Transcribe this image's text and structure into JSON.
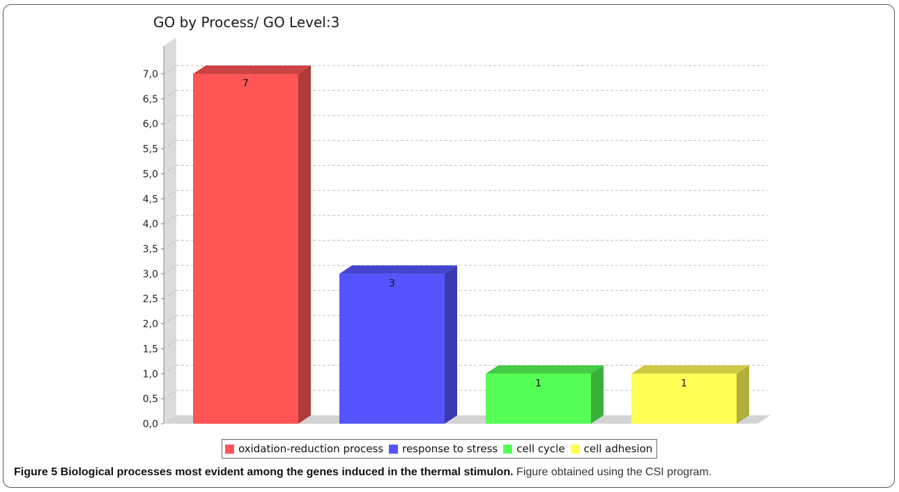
{
  "chart_data": {
    "type": "bar",
    "title": "GO by Process/ GO Level:3",
    "categories": [
      "oxidation-reduction process",
      "response to stress",
      "cell cycle",
      "cell adhesion"
    ],
    "values": [
      7,
      3,
      1,
      1
    ],
    "data_labels": [
      "7",
      "3",
      "1",
      "1"
    ],
    "colors": [
      "#ff5555",
      "#5555ff",
      "#55ff55",
      "#ffff55"
    ],
    "side_colors": [
      "#b03a3a",
      "#3a3ab0",
      "#3ab03a",
      "#b0b03a"
    ],
    "top_colors": [
      "#cc4444",
      "#4444cc",
      "#44cc44",
      "#cccc44"
    ],
    "ylim": [
      0,
      7
    ],
    "yticks": [
      "0,0",
      "0,5",
      "1,0",
      "1,5",
      "2,0",
      "2,5",
      "3,0",
      "3,5",
      "4,0",
      "4,5",
      "5,0",
      "5,5",
      "6,0",
      "6,5",
      "7,0"
    ],
    "ytick_values": [
      0,
      0.5,
      1,
      1.5,
      2,
      2.5,
      3,
      3.5,
      4,
      4.5,
      5,
      5.5,
      6,
      6.5,
      7
    ],
    "grid": true,
    "legend_position": "bottom",
    "style": "3d"
  },
  "caption": {
    "bold": "Figure 5 Biological processes most evident among the genes induced in the thermal stimulon.",
    "normal": " Figure obtained using the CSI program."
  }
}
